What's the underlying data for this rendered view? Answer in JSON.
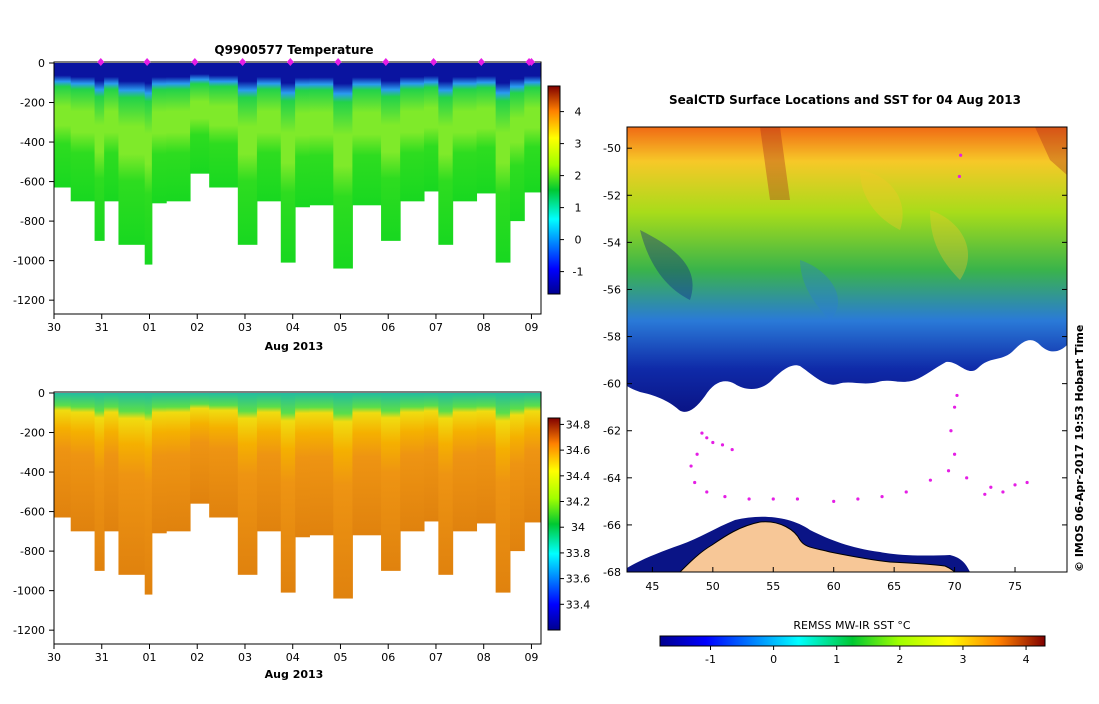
{
  "colors": {
    "land": "#f7c797",
    "coast": "#000000",
    "marker": "#e51ee5",
    "background": "#ffffff"
  },
  "chart_data": [
    {
      "id": "temperature-section",
      "type": "heatmap",
      "title": "Q9900577  Temperature",
      "xlabel": "Aug 2013",
      "ylabel": "",
      "x_ticks": [
        "30",
        "31",
        "01",
        "02",
        "03",
        "04",
        "05",
        "06",
        "07",
        "08",
        "09"
      ],
      "x_range": [
        0,
        10.2
      ],
      "y_ticks": [
        "0",
        "-200",
        "-400",
        "-600",
        "-800",
        "-1000",
        "-1200"
      ],
      "y_tick_values": [
        0,
        -200,
        -400,
        -600,
        -800,
        -1000,
        -1200
      ],
      "ylim": [
        -1270,
        5
      ],
      "colorbar": {
        "ticks": [
          "-1",
          "0",
          "1",
          "2",
          "3",
          "4"
        ],
        "tick_values": [
          -1,
          0,
          1,
          2,
          3,
          4
        ],
        "range": [
          -1.7,
          4.8
        ]
      },
      "profile_days": [
        0,
        0.35,
        0.85,
        1.05,
        1.35,
        1.9,
        2.05,
        2.35,
        2.85,
        3.25,
        3.85,
        4.25,
        4.75,
        5.05,
        5.35,
        5.85,
        6.25,
        6.85,
        7.25,
        7.75,
        8.05,
        8.35,
        8.85,
        9.25,
        9.55,
        9.85
      ],
      "profile_max_depth": [
        -630,
        -700,
        -900,
        -700,
        -920,
        -1020,
        -710,
        -700,
        -560,
        -630,
        -920,
        -700,
        -1010,
        -730,
        -720,
        -1040,
        -720,
        -900,
        -700,
        -650,
        -920,
        -700,
        -660,
        -1010,
        -800,
        -655
      ],
      "surface_layer": {
        "depth": -100,
        "value": -1.4
      },
      "mid_layer_value": 1.0,
      "deep_layer_value": 0.6,
      "surface_markers_days": [
        0.98,
        1.95,
        2.95,
        3.95,
        4.95,
        5.95,
        6.95,
        7.95,
        8.95,
        9.95,
        10.0
      ]
    },
    {
      "id": "salinity-section",
      "type": "heatmap",
      "title": "",
      "xlabel": "Aug 2013",
      "ylabel": "",
      "x_ticks": [
        "30",
        "31",
        "01",
        "02",
        "03",
        "04",
        "05",
        "06",
        "07",
        "08",
        "09"
      ],
      "x_range": [
        0,
        10.2
      ],
      "y_ticks": [
        "0",
        "-200",
        "-400",
        "-600",
        "-800",
        "-1000",
        "-1200"
      ],
      "y_tick_values": [
        0,
        -200,
        -400,
        -600,
        -800,
        -1000,
        -1200
      ],
      "ylim": [
        -1270,
        5
      ],
      "colorbar": {
        "ticks": [
          "33.4",
          "33.6",
          "33.8",
          "34",
          "34.2",
          "34.4",
          "34.6",
          "34.8"
        ],
        "tick_values": [
          33.4,
          33.6,
          33.8,
          34.0,
          34.2,
          34.4,
          34.6,
          34.8
        ],
        "range": [
          33.2,
          34.85
        ]
      },
      "surface_value": 33.9,
      "deep_value": 34.55
    },
    {
      "id": "sst-map",
      "type": "heatmap",
      "title": "SealCTD Surface Locations and SST for 04 Aug 2013",
      "xlabel": "",
      "ylabel": "",
      "x_ticks": [
        "45",
        "50",
        "55",
        "60",
        "65",
        "70",
        "75"
      ],
      "x_tick_values": [
        45,
        50,
        55,
        60,
        65,
        70,
        75
      ],
      "x_range": [
        42.9,
        79.3
      ],
      "y_ticks": [
        "-50",
        "-52",
        "-54",
        "-56",
        "-58",
        "-60",
        "-62",
        "-64",
        "-66",
        "-68"
      ],
      "y_tick_values": [
        -50,
        -52,
        -54,
        -56,
        -58,
        -60,
        -62,
        -64,
        -66,
        -68
      ],
      "y_range": [
        -68.0,
        -49.1
      ],
      "colorbar": {
        "label": "REMSS MW-IR SST °C",
        "ticks": [
          "-1",
          "0",
          "1",
          "2",
          "3",
          "4"
        ],
        "tick_values": [
          -1,
          0,
          1,
          2,
          3,
          4
        ],
        "range": [
          -1.8,
          4.3
        ]
      },
      "sst_field": {
        "north_lat": -49.2,
        "north_value": 3.4,
        "south_lat": -60,
        "south_value": -1.4
      },
      "track_points": [
        [
          49.1,
          -62.1
        ],
        [
          49.5,
          -62.3
        ],
        [
          50.0,
          -62.5
        ],
        [
          50.8,
          -62.6
        ],
        [
          51.6,
          -62.8
        ],
        [
          48.7,
          -63.0
        ],
        [
          48.2,
          -63.5
        ],
        [
          48.5,
          -64.2
        ],
        [
          49.5,
          -64.6
        ],
        [
          51.0,
          -64.8
        ],
        [
          53.0,
          -64.9
        ],
        [
          55.0,
          -64.9
        ],
        [
          57.0,
          -64.9
        ],
        [
          60.0,
          -65.0
        ],
        [
          62.0,
          -64.9
        ],
        [
          64.0,
          -64.8
        ],
        [
          66.0,
          -64.6
        ],
        [
          68.0,
          -64.1
        ],
        [
          69.5,
          -63.7
        ],
        [
          70.0,
          -63.0
        ],
        [
          69.7,
          -62.0
        ],
        [
          70.0,
          -61.0
        ],
        [
          70.2,
          -60.5
        ],
        [
          71.0,
          -64.0
        ],
        [
          73.0,
          -64.4
        ],
        [
          75.0,
          -64.3
        ],
        [
          76.0,
          -64.2
        ],
        [
          74.0,
          -64.6
        ],
        [
          72.5,
          -64.7
        ],
        [
          70.5,
          -50.3
        ],
        [
          70.4,
          -51.2
        ]
      ],
      "annotation": "© IMOS 06-Apr-2017 19:53 Hobart Time"
    }
  ]
}
